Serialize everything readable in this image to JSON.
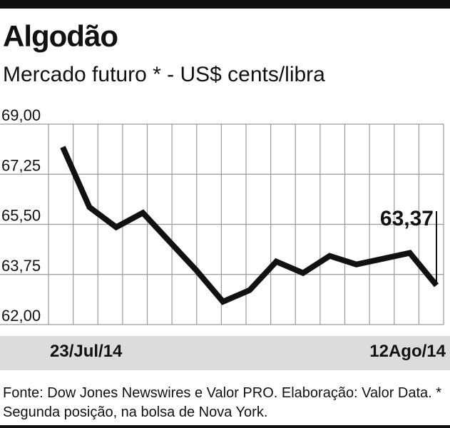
{
  "header": {
    "title": "Algodão",
    "subtitle": "Mercado futuro * - US$ cents/libra"
  },
  "source_note": "Fonte: Dow Jones Newswires e Valor PRO. Elaboração: Valor Data. * Segunda posição, na bolsa de Nova York.",
  "colors": {
    "line": "#111111",
    "grid": "#9a9a9a",
    "footer_band": "#dcdcdc"
  },
  "chart_data": {
    "type": "line",
    "title": "Algodão",
    "subtitle": "Mercado futuro * - US$ cents/libra",
    "x_start_label": "23/Jul/14",
    "x_end_label": "12Ago/14",
    "yticks": [
      "69,00",
      "67,25",
      "65,50",
      "63,75",
      "62,00"
    ],
    "ylim": [
      62,
      69
    ],
    "grid": true,
    "series": [
      {
        "values": [
          68.2,
          66.1,
          65.4,
          65.9,
          64.9,
          63.9,
          62.8,
          63.2,
          64.2,
          63.8,
          64.4,
          64.1,
          64.3,
          64.5,
          63.37
        ]
      }
    ],
    "annotation": {
      "label": "63,37",
      "value": 63.37
    }
  }
}
